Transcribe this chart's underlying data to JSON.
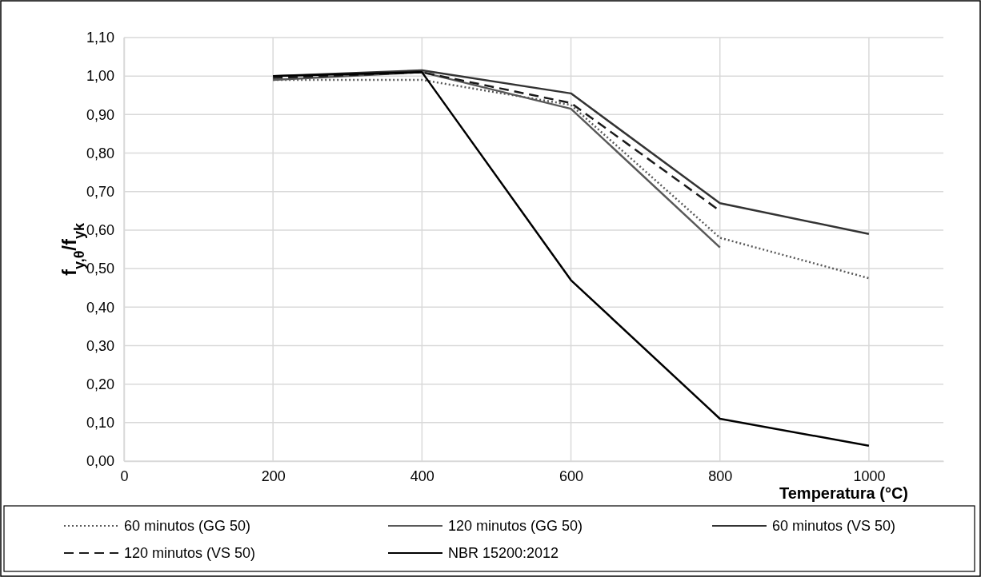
{
  "chart_data": {
    "type": "line",
    "xlabel": "Temperatura (°C)",
    "ylabel": "f$_{y,θ}$/f$_{yk}$",
    "x": [
      200,
      400,
      600,
      800,
      1000
    ],
    "xlim": [
      0,
      1100
    ],
    "xticks": [
      0,
      200,
      400,
      600,
      800,
      1000
    ],
    "ylim": [
      0,
      1.1
    ],
    "yticks": [
      {
        "value": 0,
        "label": "0,00"
      },
      {
        "value": 0.1,
        "label": "0,10"
      },
      {
        "value": 0.2,
        "label": "0,20"
      },
      {
        "value": 0.3,
        "label": "0,30"
      },
      {
        "value": 0.4,
        "label": "0,40"
      },
      {
        "value": 0.5,
        "label": "0,50"
      },
      {
        "value": 0.6,
        "label": "0,60"
      },
      {
        "value": 0.7,
        "label": "0,70"
      },
      {
        "value": 0.8,
        "label": "0,80"
      },
      {
        "value": 0.9,
        "label": "0,90"
      },
      {
        "value": 1.0,
        "label": "1,00"
      },
      {
        "value": 1.1,
        "label": "1,10"
      }
    ],
    "grid": true,
    "legend": "bottom",
    "marker": "none",
    "series": [
      {
        "name": "60 minutos (GG 50)",
        "color": "#595959",
        "line_style": "dotted",
        "values": [
          0.99,
          0.99,
          0.925,
          0.58,
          0.475
        ]
      },
      {
        "name": "120 minutos (GG 50)",
        "color": "#595959",
        "line_style": "solid",
        "values": [
          0.99,
          1.01,
          0.915,
          0.555,
          null
        ]
      },
      {
        "name": "60 minutos (VS 50)",
        "color": "#333333",
        "line_style": "solid",
        "values": [
          1.0,
          1.015,
          0.955,
          0.67,
          0.59
        ]
      },
      {
        "name": "120 minutos (VS 50)",
        "color": "#1a1a1a",
        "line_style": "dashed",
        "values": [
          0.995,
          1.01,
          0.93,
          0.65,
          null
        ]
      },
      {
        "name": "NBR 15200:2012",
        "color": "#000000",
        "line_style": "solid",
        "values": [
          1.0,
          1.01,
          0.47,
          0.11,
          0.04
        ]
      }
    ]
  }
}
